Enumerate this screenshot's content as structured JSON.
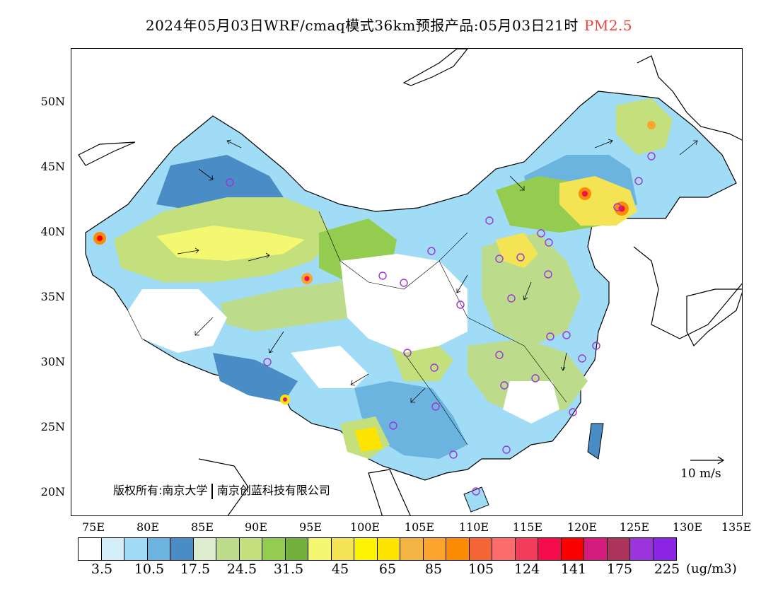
{
  "title": {
    "main": "2024年05月03日WRF/cmaq模式36km预报产品:05月03日21时",
    "pollutant": "PM2.5"
  },
  "map": {
    "lat_labels": [
      "50N",
      "45N",
      "40N",
      "35N",
      "30N",
      "25N",
      "20N"
    ],
    "lon_labels": [
      "75E",
      "80E",
      "85E",
      "90E",
      "95E",
      "100E",
      "105E",
      "110E",
      "115E",
      "120E",
      "125E",
      "130E",
      "135E"
    ],
    "copyright_left": "版权所有:南京大学",
    "copyright_right": "南京创蓝科技有限公司",
    "wind_reference": "10 m/s"
  },
  "legend": {
    "colors": [
      "#ffffff",
      "#d4eefa",
      "#a0dcf5",
      "#6cb4e0",
      "#4a8cc6",
      "#dceccc",
      "#bcdc8c",
      "#c4e07c",
      "#94cc50",
      "#74b03c",
      "#f4f870",
      "#f4e454",
      "#fcf400",
      "#fce400",
      "#f4b444",
      "#fca42c",
      "#fc8c04",
      "#f46434",
      "#fc6c6c",
      "#f43c5c",
      "#f40c4c",
      "#fc0000",
      "#d41c7c",
      "#ac345c",
      "#9c34dc",
      "#8c24e4"
    ],
    "ticks": [
      "3.5",
      "10.5",
      "17.5",
      "24.5",
      "31.5",
      "45",
      "65",
      "85",
      "105",
      "124",
      "141",
      "175",
      "225"
    ],
    "unit": "(ug/m3)"
  }
}
